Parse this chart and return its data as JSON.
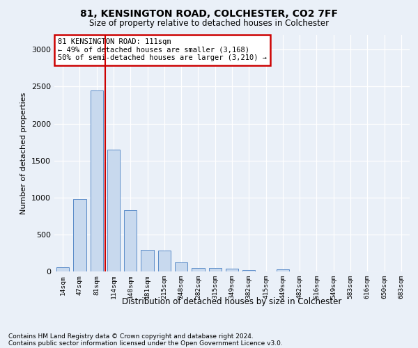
{
  "title1": "81, KENSINGTON ROAD, COLCHESTER, CO2 7FF",
  "title2": "Size of property relative to detached houses in Colchester",
  "xlabel": "Distribution of detached houses by size in Colchester",
  "ylabel": "Number of detached properties",
  "categories": [
    "14sqm",
    "47sqm",
    "81sqm",
    "114sqm",
    "148sqm",
    "181sqm",
    "215sqm",
    "248sqm",
    "282sqm",
    "315sqm",
    "349sqm",
    "382sqm",
    "415sqm",
    "449sqm",
    "482sqm",
    "516sqm",
    "549sqm",
    "583sqm",
    "616sqm",
    "650sqm",
    "683sqm"
  ],
  "values": [
    52,
    975,
    2450,
    1650,
    825,
    290,
    285,
    120,
    50,
    45,
    35,
    20,
    0,
    30,
    0,
    0,
    0,
    0,
    0,
    0,
    0
  ],
  "bar_color": "#c8d9ee",
  "bar_edge_color": "#5b8cc8",
  "vline_color": "#cc0000",
  "vline_x": 2.5,
  "ylim": [
    0,
    3200
  ],
  "yticks": [
    0,
    500,
    1000,
    1500,
    2000,
    2500,
    3000
  ],
  "annotation_text": "81 KENSINGTON ROAD: 111sqm\n← 49% of detached houses are smaller (3,168)\n50% of semi-detached houses are larger (3,210) →",
  "annotation_box_color": "#ffffff",
  "annotation_box_edge": "#cc0000",
  "footer1": "Contains HM Land Registry data © Crown copyright and database right 2024.",
  "footer2": "Contains public sector information licensed under the Open Government Licence v3.0.",
  "bg_color": "#eaf0f8",
  "plot_bg_color": "#eaf0f8"
}
